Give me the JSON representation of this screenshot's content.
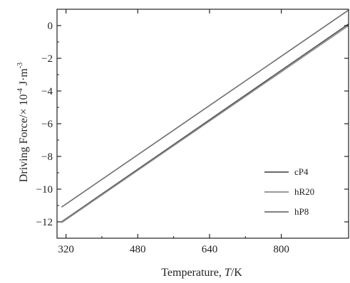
{
  "chart_data": {
    "type": "line",
    "xlabel": {
      "prefix": "Temperature, ",
      "var": "T",
      "suffix": "/K"
    },
    "ylabel": {
      "prefix": "Driving Force/",
      "times": "×",
      "base": " 10",
      "exp": "-4",
      "unit": " J·m",
      "unit_exp": "-3"
    },
    "xlim": [
      300,
      950
    ],
    "ylim": [
      -13,
      1
    ],
    "x_ticks": [
      320,
      480,
      640,
      800
    ],
    "y_ticks": [
      0,
      -2,
      -4,
      -6,
      -8,
      -10,
      -12
    ],
    "legend_position": "bottom-right",
    "series": [
      {
        "name": "cP4",
        "color": "#555555",
        "x": [
          310,
          950
        ],
        "y": [
          -12.0,
          0.1
        ]
      },
      {
        "name": "hR20",
        "color": "#8c8c8c",
        "x": [
          310,
          950
        ],
        "y": [
          -12.05,
          0.0
        ]
      },
      {
        "name": "hP8",
        "color": "#6f6f6f",
        "x": [
          310,
          950
        ],
        "y": [
          -11.1,
          0.95
        ]
      }
    ]
  }
}
